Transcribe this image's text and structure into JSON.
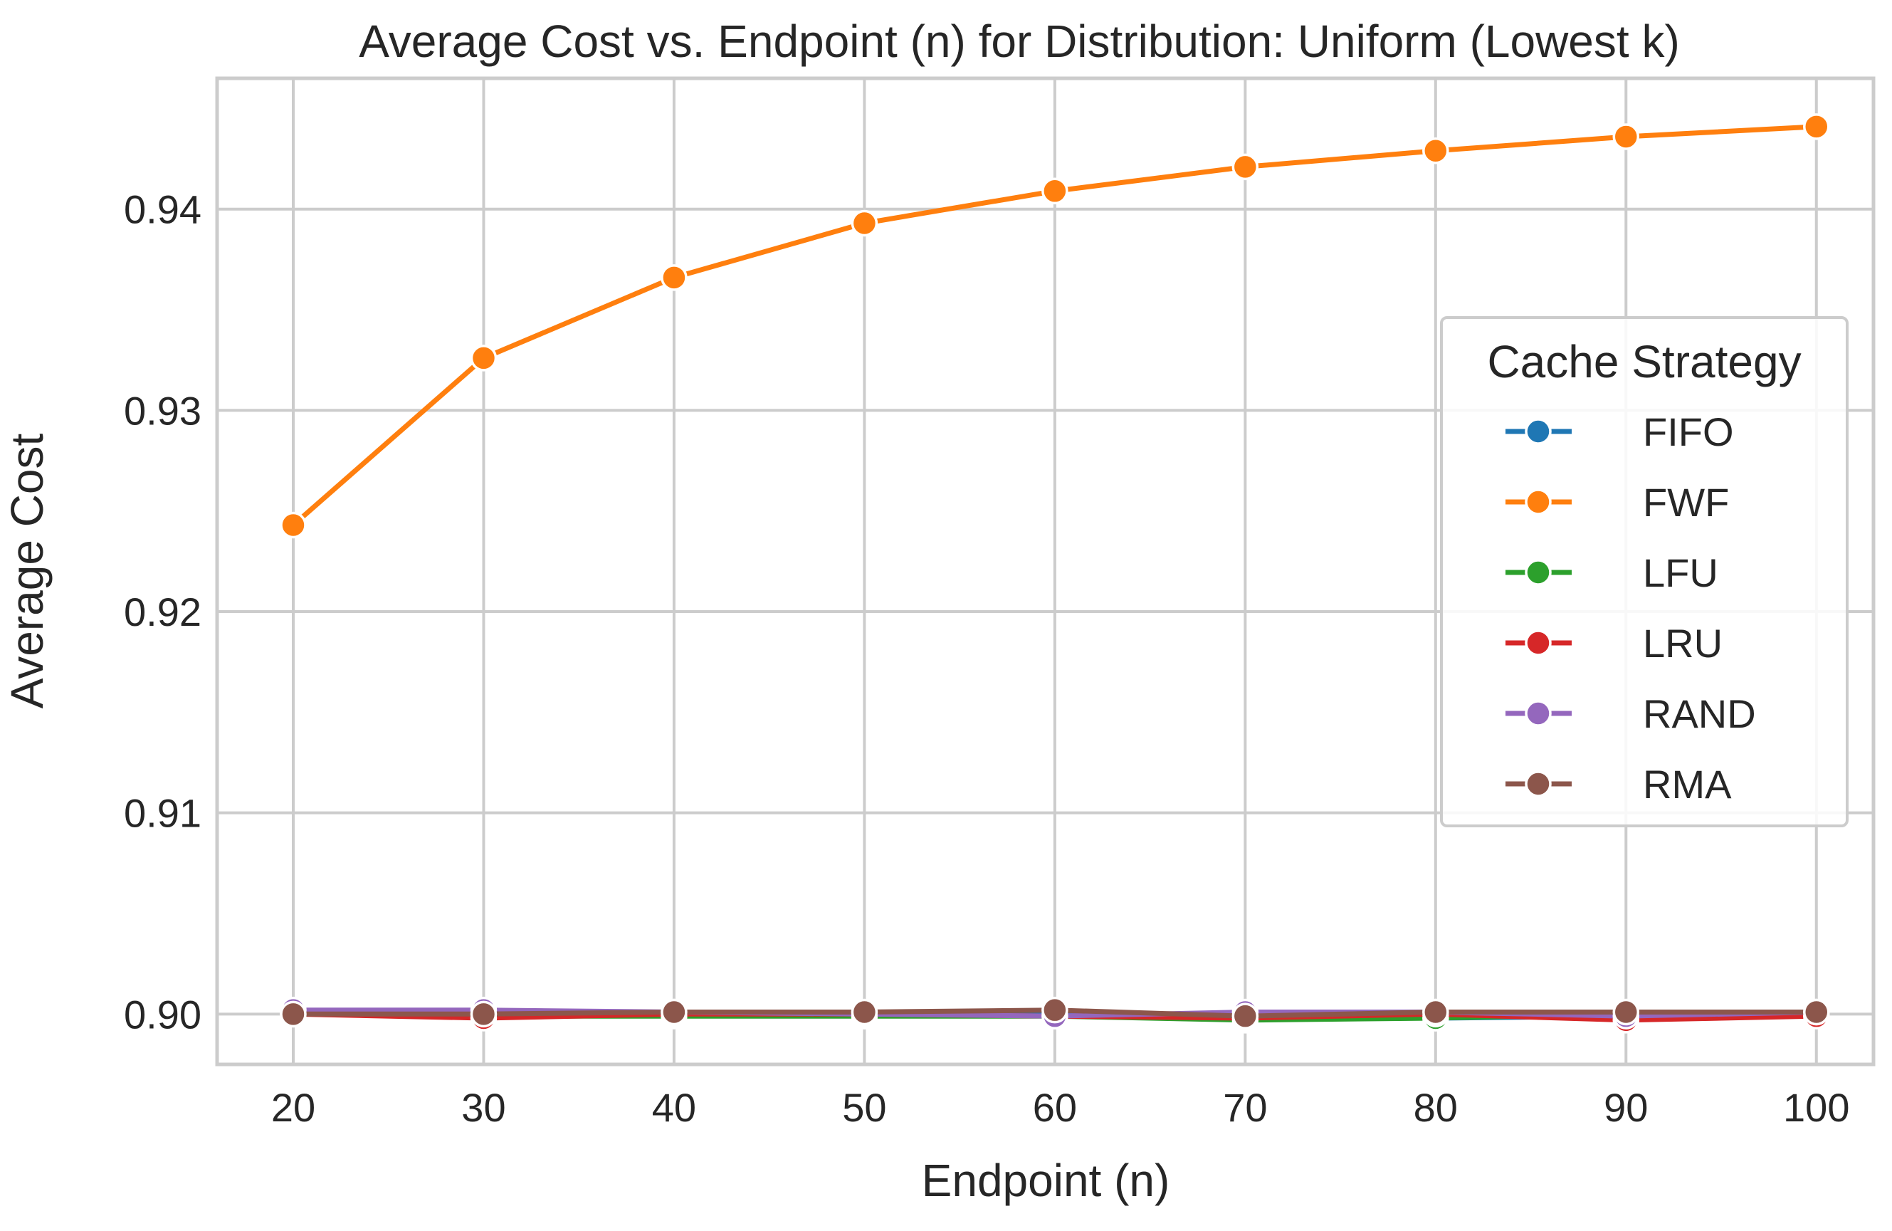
{
  "chart_data": {
    "type": "line",
    "title": "Average Cost vs. Endpoint (n) for Distribution: Uniform (Lowest k)",
    "xlabel": "Endpoint (n)",
    "ylabel": "Average Cost",
    "x": [
      20,
      30,
      40,
      50,
      60,
      70,
      80,
      90,
      100
    ],
    "x_ticks": [
      "20",
      "30",
      "40",
      "50",
      "60",
      "70",
      "80",
      "90",
      "100"
    ],
    "y_ticks": [
      "0.90",
      "0.91",
      "0.92",
      "0.93",
      "0.94"
    ],
    "y_tick_values": [
      0.9,
      0.91,
      0.92,
      0.93,
      0.94
    ],
    "xlim": [
      16,
      103
    ],
    "ylim": [
      0.8975,
      0.9465
    ],
    "grid": true,
    "legend": {
      "title": "Cache Strategy",
      "placement": "center-right"
    },
    "series": [
      {
        "name": "FIFO",
        "color": "#1f77b4",
        "values": [
          0.9001,
          0.9001,
          0.9,
          0.8999,
          0.9,
          0.8998,
          0.8998,
          0.8999,
          0.9
        ]
      },
      {
        "name": "FWF",
        "color": "#ff7f0e",
        "values": [
          0.9243,
          0.9326,
          0.9366,
          0.9393,
          0.9409,
          0.9421,
          0.9429,
          0.9436,
          0.9441
        ]
      },
      {
        "name": "LFU",
        "color": "#2ca02c",
        "values": [
          0.9,
          0.8999,
          0.8999,
          0.8999,
          0.8999,
          0.8997,
          0.8998,
          0.9,
          0.9
        ]
      },
      {
        "name": "LRU",
        "color": "#d62728",
        "values": [
          0.9,
          0.8998,
          0.9,
          0.9,
          0.8999,
          0.8998,
          0.9,
          0.8997,
          0.8999
        ]
      },
      {
        "name": "RAND",
        "color": "#9467bd",
        "values": [
          0.9002,
          0.9002,
          0.9001,
          0.9,
          0.8999,
          0.9001,
          0.9001,
          0.8999,
          0.9001
        ]
      },
      {
        "name": "RMA",
        "color": "#8c564b",
        "values": [
          0.9,
          0.9,
          0.9001,
          0.9001,
          0.9002,
          0.8999,
          0.9001,
          0.9001,
          0.9001
        ]
      }
    ]
  }
}
